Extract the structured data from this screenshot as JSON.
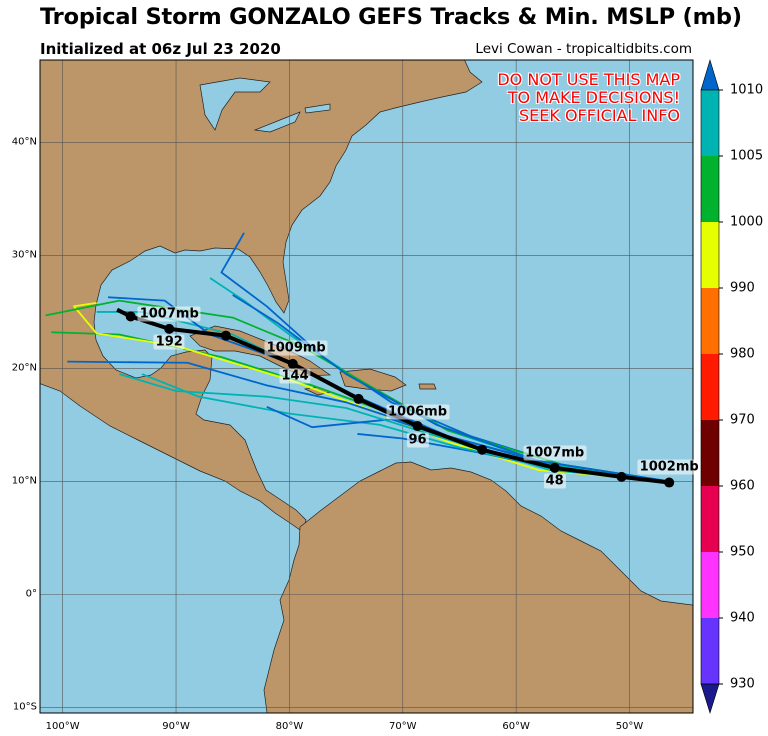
{
  "header": {
    "title": "Tropical Storm GONZALO GEFS Tracks & Min. MSLP (mb)",
    "subtitle": "Initialized at 06z Jul 23 2020",
    "credit": "Levi Cowan - tropicaltidbits.com"
  },
  "warning": [
    "DO NOT USE THIS MAP",
    "TO MAKE DECISIONS!",
    "SEEK OFFICIAL INFO"
  ],
  "colors": {
    "ocean": "#92cce3",
    "land": "#bc9668",
    "mean_track": "#000000",
    "warning": "#ff0000"
  },
  "map": {
    "lon_range": [
      -102,
      -44.4
    ],
    "lat_range": [
      -10.5,
      47.3
    ],
    "lon_ticks": [
      {
        "v": -100,
        "label": "100°W"
      },
      {
        "v": -90,
        "label": "90°W"
      },
      {
        "v": -80,
        "label": "80°W"
      },
      {
        "v": -70,
        "label": "70°W"
      },
      {
        "v": -60,
        "label": "60°W"
      },
      {
        "v": -50,
        "label": "50°W"
      }
    ],
    "lat_ticks": [
      {
        "v": 40,
        "label": "40°N"
      },
      {
        "v": 30,
        "label": "30°N"
      },
      {
        "v": 20,
        "label": "20°N"
      },
      {
        "v": 10,
        "label": "10°N"
      },
      {
        "v": 0,
        "label": "0°"
      },
      {
        "v": -10,
        "label": "10°S"
      }
    ],
    "grid": true
  },
  "mean_track": {
    "points": [
      [
        -46.5,
        9.9
      ],
      [
        -50.7,
        10.4
      ],
      [
        -56.6,
        11.2
      ],
      [
        -63.0,
        12.8
      ],
      [
        -68.7,
        14.9
      ],
      [
        -73.9,
        17.3
      ],
      [
        -79.7,
        20.4
      ],
      [
        -85.6,
        22.9
      ],
      [
        -90.6,
        23.5
      ],
      [
        -94.0,
        24.6
      ],
      [
        -95.2,
        25.2
      ]
    ],
    "labels": [
      {
        "text": "1002mb",
        "lon": -46.5,
        "lat": 11.3
      },
      {
        "text": "1007mb",
        "lon": -56.6,
        "lat": 12.5
      },
      {
        "text": "48",
        "lon": -56.6,
        "lat": 10.0
      },
      {
        "text": "1006mb",
        "lon": -68.7,
        "lat": 16.1
      },
      {
        "text": "96",
        "lon": -68.7,
        "lat": 13.7
      },
      {
        "text": "1009mb",
        "lon": -79.4,
        "lat": 21.8
      },
      {
        "text": "144",
        "lon": -79.5,
        "lat": 19.3
      },
      {
        "text": "1007mb",
        "lon": -90.6,
        "lat": 24.8
      },
      {
        "text": "192",
        "lon": -90.6,
        "lat": 22.3
      }
    ]
  },
  "members": [
    {
      "color": "#0066cc",
      "points": [
        [
          -46.5,
          10
        ],
        [
          -56,
          11.5
        ],
        [
          -64,
          14
        ],
        [
          -71,
          17
        ],
        [
          -77,
          21
        ],
        [
          -82,
          25.5
        ],
        [
          -86,
          28.5
        ],
        [
          -84,
          32
        ]
      ]
    },
    {
      "color": "#00b3b3",
      "points": [
        [
          -46.5,
          10
        ],
        [
          -57,
          11.2
        ],
        [
          -65,
          13.5
        ],
        [
          -72,
          16.5
        ],
        [
          -79,
          20
        ],
        [
          -85,
          23
        ],
        [
          -93,
          25
        ],
        [
          -97,
          25
        ]
      ]
    },
    {
      "color": "#00b22d",
      "points": [
        [
          -46.5,
          10
        ],
        [
          -56,
          11
        ],
        [
          -64,
          13
        ],
        [
          -71,
          16
        ],
        [
          -78,
          18.5
        ],
        [
          -86,
          21
        ],
        [
          -95,
          23
        ],
        [
          -101,
          23.2
        ]
      ]
    },
    {
      "color": "#e6ff00",
      "points": [
        [
          -46.5,
          10
        ],
        [
          -58,
          11
        ],
        [
          -66,
          13.5
        ],
        [
          -72,
          16
        ],
        [
          -80,
          19
        ],
        [
          -90,
          22
        ],
        [
          -97,
          23.1
        ],
        [
          -99,
          25.5
        ],
        [
          -97,
          25.8
        ]
      ]
    },
    {
      "color": "#0066cc",
      "points": [
        [
          -46.5,
          10
        ],
        [
          -56,
          11
        ],
        [
          -63,
          12.5
        ],
        [
          -70,
          13.8
        ],
        [
          -74,
          14.2
        ]
      ]
    },
    {
      "color": "#0066cc",
      "points": [
        [
          -46.5,
          10
        ],
        [
          -57,
          11.5
        ],
        [
          -66,
          14
        ],
        [
          -75,
          17
        ],
        [
          -82,
          18.5
        ],
        [
          -89,
          20.5
        ],
        [
          -99.6,
          20.6
        ]
      ]
    },
    {
      "color": "#00b3b3",
      "points": [
        [
          -46.5,
          10
        ],
        [
          -56,
          11
        ],
        [
          -65,
          13
        ],
        [
          -72,
          15
        ],
        [
          -80,
          16
        ],
        [
          -88,
          17.5
        ],
        [
          -93,
          19.5
        ]
      ]
    },
    {
      "color": "#0066cc",
      "points": [
        [
          -46.5,
          10
        ],
        [
          -56,
          11.3
        ],
        [
          -66,
          14
        ],
        [
          -74,
          17.5
        ],
        [
          -80,
          20.5
        ],
        [
          -87,
          23
        ],
        [
          -91,
          26
        ],
        [
          -96,
          26.3
        ]
      ]
    },
    {
      "color": "#00b3b3",
      "points": [
        [
          -46.5,
          10
        ],
        [
          -57,
          11.5
        ],
        [
          -66,
          14.5
        ],
        [
          -74,
          19
        ],
        [
          -80,
          23
        ],
        [
          -84,
          26
        ],
        [
          -87,
          28
        ]
      ]
    },
    {
      "color": "#0066cc",
      "points": [
        [
          -46.5,
          10
        ],
        [
          -57,
          11.2
        ],
        [
          -65,
          13.5
        ],
        [
          -71,
          15.5
        ],
        [
          -78,
          14.8
        ],
        [
          -82,
          16.6
        ]
      ]
    },
    {
      "color": "#00b3b3",
      "points": [
        [
          -46.5,
          10
        ],
        [
          -57,
          11
        ],
        [
          -67,
          14
        ],
        [
          -75,
          16.5
        ],
        [
          -82,
          17.5
        ],
        [
          -90,
          18
        ],
        [
          -95,
          19.5
        ]
      ]
    },
    {
      "color": "#00b22d",
      "points": [
        [
          -46.5,
          10
        ],
        [
          -56,
          11.5
        ],
        [
          -66,
          14.5
        ],
        [
          -73,
          18.5
        ],
        [
          -79,
          22
        ],
        [
          -85,
          24.5
        ],
        [
          -95,
          26
        ],
        [
          -101.5,
          24.7
        ]
      ]
    },
    {
      "color": "#0066cc",
      "points": [
        [
          -46.5,
          10
        ],
        [
          -58,
          11.8
        ],
        [
          -67,
          15
        ],
        [
          -75,
          19.5
        ],
        [
          -81,
          24
        ],
        [
          -85,
          26.5
        ]
      ]
    }
  ],
  "colorbar": {
    "ticks": [
      "1010",
      "1005",
      "1000",
      "990",
      "980",
      "970",
      "960",
      "950",
      "940",
      "930"
    ],
    "bins": [
      {
        "range": ">1010",
        "color": "#0066cc"
      },
      {
        "range": "1005-1010",
        "color": "#00b3b3"
      },
      {
        "range": "1000-1005",
        "color": "#00b22d"
      },
      {
        "range": "990-1000",
        "color": "#e6ff00"
      },
      {
        "range": "980-990",
        "color": "#ff7000"
      },
      {
        "range": "970-980",
        "color": "#ff1a00"
      },
      {
        "range": "960-970",
        "color": "#6e0000"
      },
      {
        "range": "950-960",
        "color": "#e6004f"
      },
      {
        "range": "940-950",
        "color": "#ff33ff"
      },
      {
        "range": "930-940",
        "color": "#6633ff"
      },
      {
        "range": "<930",
        "color": "#1a1a8c"
      }
    ]
  }
}
